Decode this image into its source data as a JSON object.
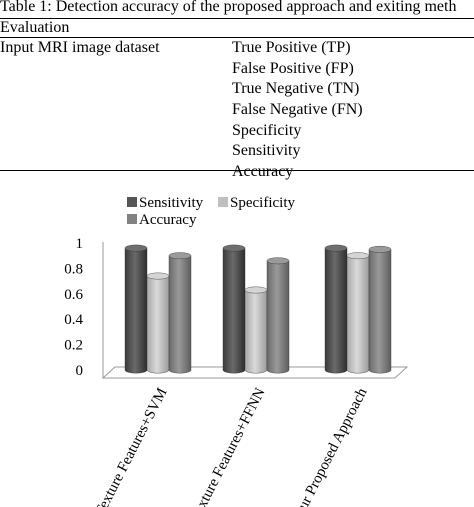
{
  "table": {
    "caption": "Table 1: Detection accuracy of the proposed approach and exiting meth",
    "header": "Evaluation",
    "dataset_label": "Input MRI image dataset",
    "metrics": [
      "True Positive (TP)",
      "False Positive (FP)",
      "True Negative (TN)",
      "False Negative (FN)",
      "Specificity",
      "Sensitivity",
      "Accuracy"
    ]
  },
  "colors": {
    "sensitivity": "#555555",
    "specificity": "#bfbfbf",
    "accuracy": "#828282"
  },
  "chart_data": {
    "type": "bar",
    "style": "3d-cylinder",
    "categories": [
      "Texture Features+SVM",
      "Texture Features+FFNN",
      "Our Proposed Approach"
    ],
    "series": [
      {
        "name": "Sensitivity",
        "values": [
          0.96,
          0.96,
          0.96
        ]
      },
      {
        "name": "Specificity",
        "values": [
          0.74,
          0.63,
          0.9
        ]
      },
      {
        "name": "Accuracy",
        "values": [
          0.9,
          0.86,
          0.95
        ]
      }
    ],
    "yticks": [
      "0",
      "0.2",
      "0.4",
      "0.6",
      "0.8",
      "1"
    ],
    "ylim": [
      0,
      1
    ],
    "legend_position": "top",
    "grid": false
  }
}
